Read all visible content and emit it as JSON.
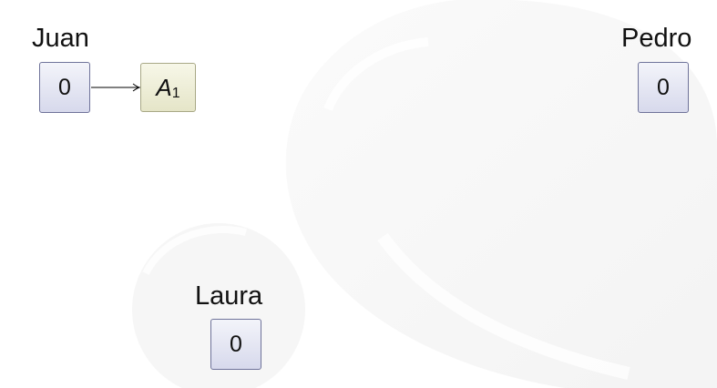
{
  "nodes": {
    "juan": {
      "name": "Juan",
      "value": "0"
    },
    "pedro": {
      "name": "Pedro",
      "value": "0"
    },
    "laura": {
      "name": "Laura",
      "value": "0"
    }
  },
  "account": {
    "letter": "A",
    "index": "1"
  },
  "colors": {
    "counter_fill_top": "#f3f4fa",
    "counter_fill_bottom": "#d7d9ec",
    "counter_border": "#6f739a",
    "account_fill_top": "#f7f7e8",
    "account_fill_bottom": "#e5e5c8",
    "account_border": "#a8a886",
    "watermark": "#e9e9e9"
  }
}
